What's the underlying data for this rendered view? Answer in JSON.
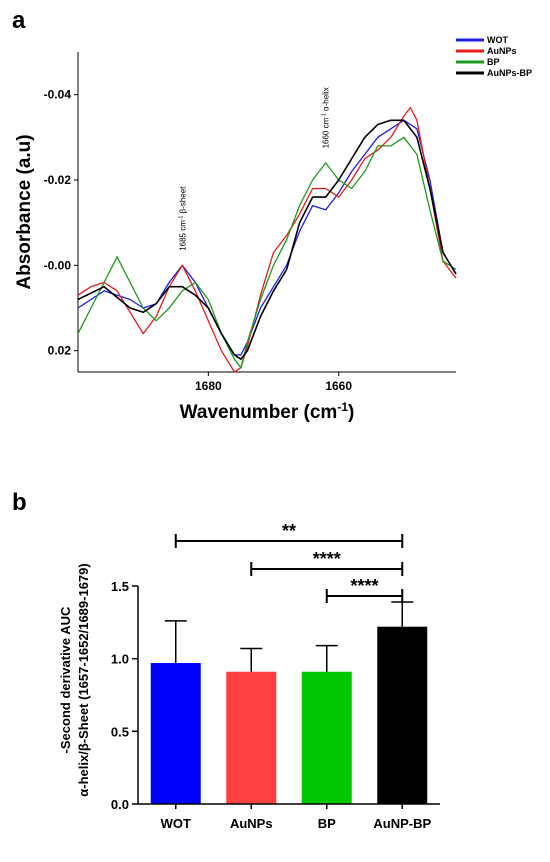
{
  "panel_a": {
    "letter": "a",
    "chart_data": {
      "type": "line",
      "xlabel": "Wavenumber (cm",
      "xlabel_sup": "-1",
      "xlabel_end": ")",
      "ylabel": "Absorbance (a.u)",
      "xlim": [
        1700,
        1642
      ],
      "ylim": [
        -0.05,
        0.025
      ],
      "y_reversed": true,
      "x_ticks": [
        1680,
        1660
      ],
      "y_ticks": [
        -0.04,
        -0.02,
        0.0,
        0.02
      ],
      "y_tick_labels": [
        "-0.04",
        "-0.02",
        "-0.00",
        "0.02"
      ],
      "annotations": [
        {
          "text": "1685 cm",
          "sup": "-1",
          "tail": " β-sheet",
          "x": 1684,
          "y": -0.002
        },
        {
          "text": "1660 cm",
          "sup": "-1",
          "tail": " α-helix",
          "x": 1662,
          "y": -0.026
        }
      ],
      "legend_position": "top-right",
      "series": [
        {
          "name": "WOT",
          "color": "#1f1fdd",
          "x": [
            1700,
            1696,
            1692,
            1690,
            1688,
            1686,
            1684,
            1682,
            1680,
            1678,
            1676,
            1675,
            1674,
            1672,
            1670,
            1668,
            1666,
            1664,
            1662,
            1660,
            1658,
            1656,
            1654,
            1652,
            1650,
            1648,
            1646,
            1644,
            1642
          ],
          "y": [
            0.01,
            0.006,
            0.008,
            0.01,
            0.009,
            0.004,
            0.0,
            0.004,
            0.01,
            0.016,
            0.021,
            0.021,
            0.018,
            0.01,
            0.005,
            0.0,
            -0.008,
            -0.014,
            -0.013,
            -0.017,
            -0.022,
            -0.026,
            -0.03,
            -0.032,
            -0.034,
            -0.032,
            -0.02,
            -0.003,
            0.002
          ]
        },
        {
          "name": "AuNPs",
          "color": "#e61b1b",
          "x": [
            1700,
            1698,
            1696,
            1694,
            1692,
            1690,
            1688,
            1686,
            1684,
            1682,
            1680,
            1678,
            1676,
            1675,
            1674,
            1672,
            1670,
            1668,
            1666,
            1664,
            1662,
            1660,
            1658,
            1656,
            1654,
            1652,
            1650,
            1649,
            1648,
            1646,
            1644,
            1642
          ],
          "y": [
            0.007,
            0.005,
            0.004,
            0.006,
            0.011,
            0.016,
            0.012,
            0.005,
            0.0,
            0.006,
            0.013,
            0.02,
            0.025,
            0.024,
            0.019,
            0.007,
            -0.003,
            -0.007,
            -0.012,
            -0.018,
            -0.018,
            -0.016,
            -0.02,
            -0.025,
            -0.027,
            -0.03,
            -0.035,
            -0.037,
            -0.034,
            -0.018,
            -0.001,
            0.003
          ]
        },
        {
          "name": "BP",
          "color": "#1e9a1e",
          "x": [
            1700,
            1698,
            1696,
            1694,
            1692,
            1690,
            1688,
            1686,
            1684,
            1682,
            1680,
            1678,
            1676,
            1675,
            1674,
            1672,
            1670,
            1668,
            1666,
            1664,
            1662,
            1660,
            1658,
            1656,
            1654,
            1652,
            1650,
            1648,
            1646,
            1644,
            1642
          ],
          "y": [
            0.016,
            0.01,
            0.004,
            -0.002,
            0.004,
            0.01,
            0.013,
            0.01,
            0.006,
            0.004,
            0.008,
            0.016,
            0.022,
            0.024,
            0.018,
            0.008,
            0.0,
            -0.006,
            -0.014,
            -0.02,
            -0.024,
            -0.02,
            -0.018,
            -0.022,
            -0.028,
            -0.028,
            -0.03,
            -0.026,
            -0.013,
            -0.001,
            0.001
          ]
        },
        {
          "name": "AuNPs-BP",
          "color": "#000000",
          "x": [
            1700,
            1696,
            1692,
            1690,
            1688,
            1686,
            1684,
            1682,
            1680,
            1678,
            1676,
            1675,
            1674,
            1672,
            1670,
            1668,
            1666,
            1664,
            1662,
            1660,
            1658,
            1656,
            1654,
            1652,
            1650,
            1648,
            1646,
            1644,
            1642
          ],
          "y": [
            0.008,
            0.005,
            0.01,
            0.011,
            0.009,
            0.005,
            0.005,
            0.007,
            0.01,
            0.016,
            0.021,
            0.022,
            0.02,
            0.012,
            0.006,
            0.001,
            -0.01,
            -0.016,
            -0.016,
            -0.02,
            -0.025,
            -0.03,
            -0.033,
            -0.034,
            -0.034,
            -0.03,
            -0.018,
            -0.003,
            0.002
          ]
        }
      ]
    }
  },
  "panel_b": {
    "letter": "b",
    "chart_data": {
      "type": "bar",
      "categories": [
        "WOT",
        "AuNPs",
        "BP",
        "AuNP-BP"
      ],
      "values": [
        0.97,
        0.91,
        0.91,
        1.22
      ],
      "errors": [
        0.29,
        0.16,
        0.18,
        0.17
      ],
      "colors": [
        "#0000ff",
        "#ff4040",
        "#00c800",
        "#000000"
      ],
      "ylabel_line1": "-Second derivative AUC",
      "ylabel_line2": "α-helix/β-Sheet (1657-1652/1689-1679)",
      "ylim": [
        0,
        1.5
      ],
      "y_ticks": [
        0.0,
        0.5,
        1.0,
        1.5
      ],
      "y_tick_labels": [
        "0.0",
        "0.5",
        "1.0",
        "1.5"
      ],
      "significance": [
        {
          "from": 0,
          "to": 3,
          "label": "**"
        },
        {
          "from": 1,
          "to": 3,
          "label": "****"
        },
        {
          "from": 2,
          "to": 3,
          "label": "****"
        }
      ]
    }
  }
}
